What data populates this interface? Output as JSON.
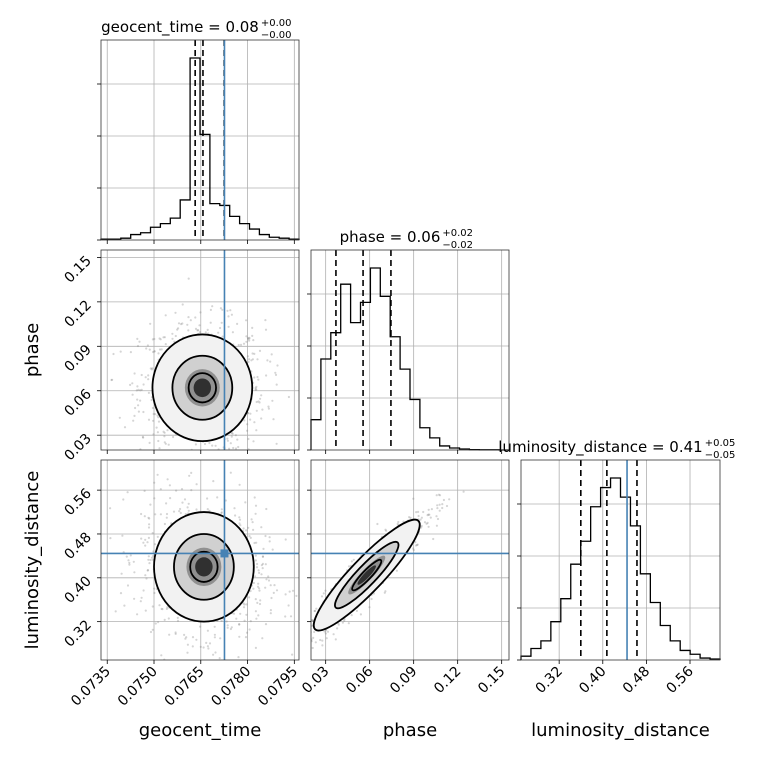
{
  "chart_data": {
    "type": "corner",
    "parameters": [
      {
        "name": "geocent_time",
        "label": "geocent_time",
        "range": [
          0.0733,
          0.07965
        ],
        "ticks": [
          0.0735,
          0.075,
          0.0765,
          0.078,
          0.0795
        ],
        "tick_labels": [
          "0.0735",
          "0.0750",
          "0.0765",
          "0.0780",
          "0.0795"
        ],
        "truth": 0.07726,
        "quantiles": [
          0.07632,
          0.07657,
          0.07725
        ],
        "title_main": "geocent_time = 0.08",
        "title_plus": "+0.00",
        "title_minus": "−0.00",
        "hist": [
          0.005,
          0.005,
          0.01,
          0.03,
          0.04,
          0.07,
          0.09,
          0.12,
          0.22,
          1.0,
          0.58,
          0.2,
          0.19,
          0.13,
          0.09,
          0.06,
          0.03,
          0.015,
          0.01,
          0.005
        ]
      },
      {
        "name": "phase",
        "label": "phase",
        "range": [
          0.02,
          0.155
        ],
        "ticks": [
          0.03,
          0.06,
          0.09,
          0.12,
          0.15
        ],
        "tick_labels": [
          "0.03",
          "0.06",
          "0.09",
          "0.12",
          "0.15"
        ],
        "truth": null,
        "quantiles": [
          0.037,
          0.0555,
          0.0745
        ],
        "title_main": "phase = 0.06",
        "title_plus": "+0.02",
        "title_minus": "−0.02",
        "hist": [
          0.15,
          0.45,
          0.58,
          0.82,
          0.63,
          0.73,
          0.9,
          0.76,
          0.56,
          0.4,
          0.25,
          0.11,
          0.06,
          0.02,
          0.01,
          0.005,
          0.002,
          0.001,
          0.001,
          0.0
        ]
      },
      {
        "name": "luminosity_distance",
        "label": "luminosity_distance",
        "range": [
          0.25,
          0.615
        ],
        "ticks": [
          0.32,
          0.4,
          0.48,
          0.56
        ],
        "tick_labels": [
          "0.32",
          "0.40",
          "0.48",
          "0.56"
        ],
        "truth": 0.4445,
        "quantiles": [
          0.3597,
          0.4075,
          0.4627
        ],
        "title_main": "luminosity_distance = 0.41",
        "title_plus": "+0.05",
        "title_minus": "−0.05",
        "hist": [
          0.02,
          0.06,
          0.1,
          0.2,
          0.32,
          0.5,
          0.62,
          0.8,
          0.9,
          0.95,
          0.85,
          0.7,
          0.45,
          0.3,
          0.18,
          0.1,
          0.05,
          0.03,
          0.01,
          0.005
        ]
      }
    ],
    "pairs": [
      {
        "x": "geocent_time",
        "y": "phase",
        "center": [
          0.07655,
          0.062
        ],
        "spread": [
          0.0008,
          0.018
        ],
        "correlation": 0.0,
        "truth_point": [
          0.07726,
          null
        ]
      },
      {
        "x": "geocent_time",
        "y": "luminosity_distance",
        "center": [
          0.0766,
          0.42
        ],
        "spread": [
          0.0008,
          0.05
        ],
        "correlation": -0.15,
        "truth_point": [
          0.07726,
          0.4445
        ]
      },
      {
        "x": "phase",
        "y": "luminosity_distance",
        "center": [
          0.058,
          0.405
        ],
        "spread": [
          0.016,
          0.045
        ],
        "correlation": 0.93,
        "truth_point": [
          null,
          0.4445
        ]
      }
    ],
    "colors": {
      "truth": "#4682b4",
      "hist": "#000000",
      "grid": "#b0b0b0",
      "scatter": "#888888"
    }
  }
}
